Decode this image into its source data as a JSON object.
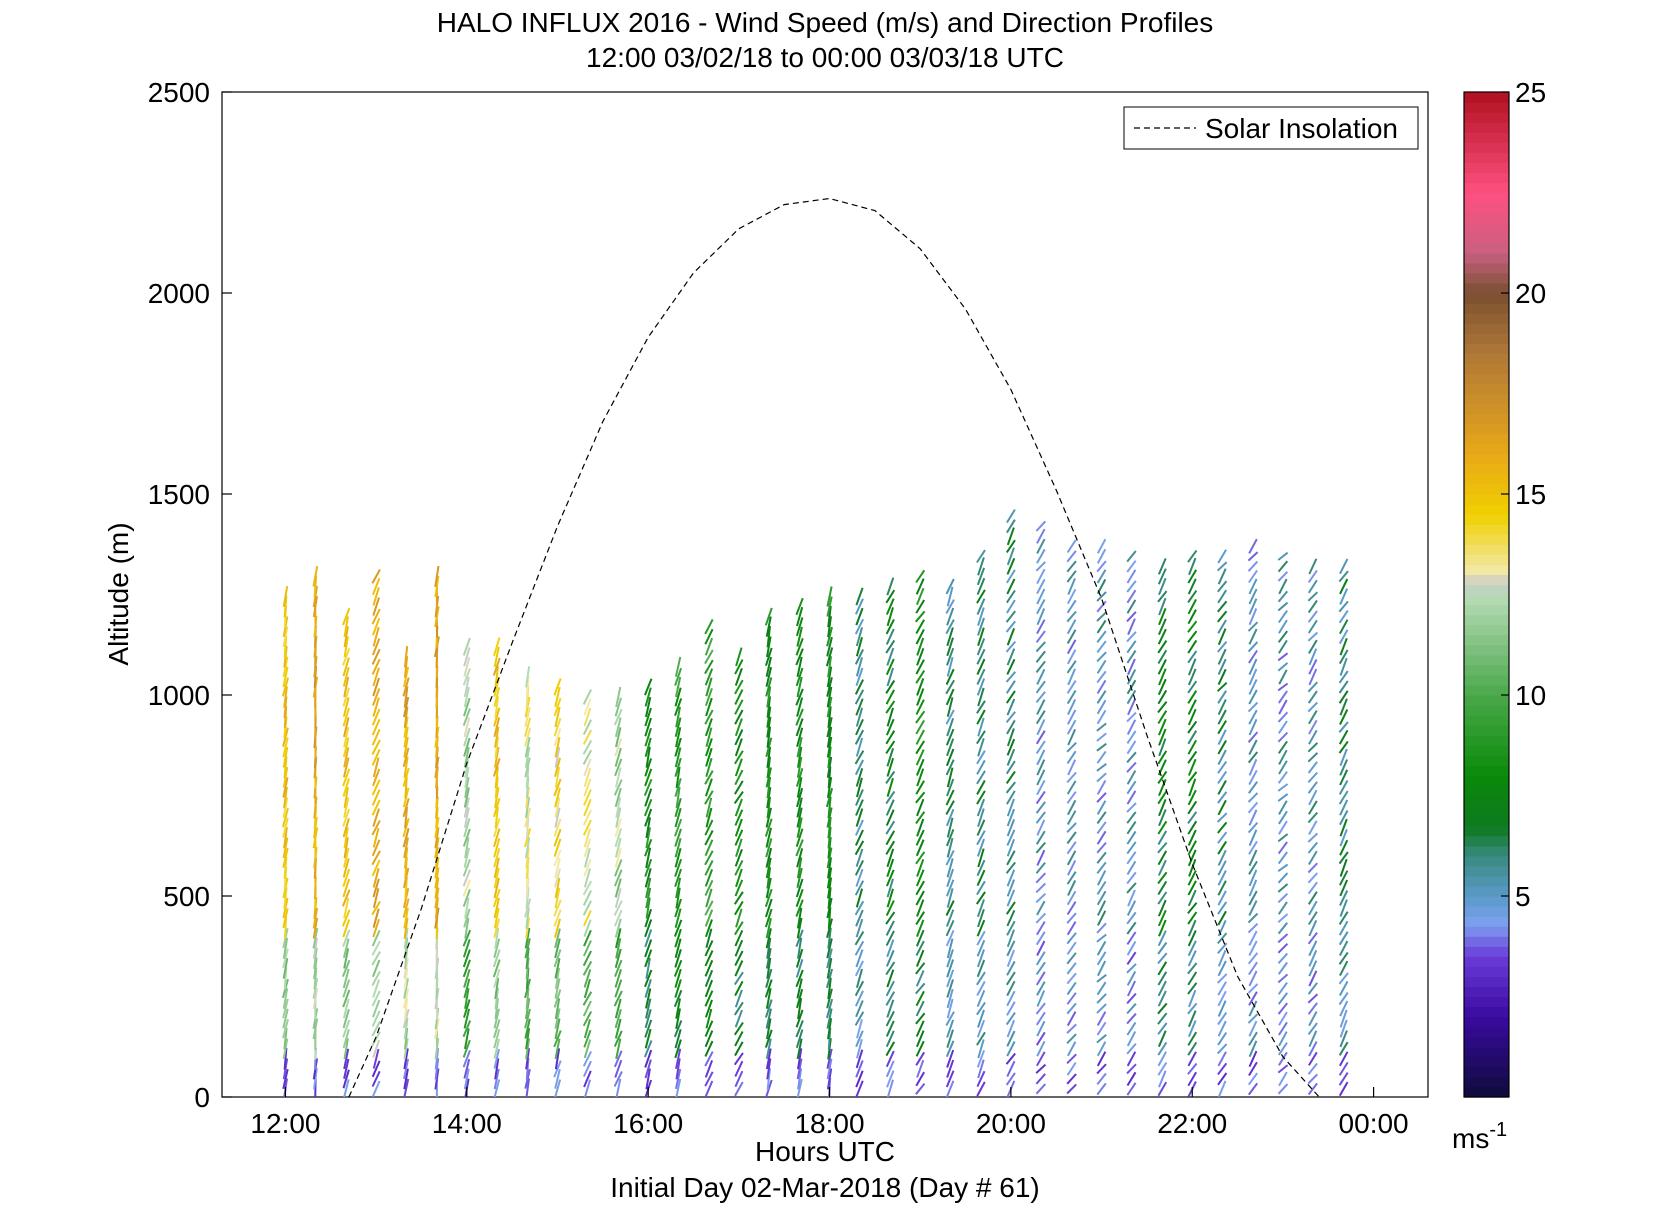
{
  "chart_data": {
    "type": "wind-barb-profile",
    "title": "HALO INFLUX 2016 - Wind Speed (m/s) and Direction Profiles",
    "subtitle": "12:00 03/02/18 to 00:00 03/03/18  UTC",
    "xlabel": "Hours UTC",
    "xlabel2": "Initial Day 02-Mar-2018 (Day # 61)",
    "ylabel": "Altitude (m)",
    "xlim": [
      11.3,
      24.6
    ],
    "ylim": [
      0,
      2500
    ],
    "x_ticks": [
      12,
      14,
      16,
      18,
      20,
      22,
      24
    ],
    "x_tick_labels": [
      "12:00",
      "14:00",
      "16:00",
      "18:00",
      "20:00",
      "22:00",
      "00:00"
    ],
    "y_ticks": [
      0,
      500,
      1000,
      1500,
      2000,
      2500
    ],
    "y_tick_labels": [
      "0",
      "500",
      "1000",
      "1500",
      "2000",
      "2500"
    ],
    "legend": {
      "position": "top-right",
      "entries": [
        {
          "label": "Solar Insolation",
          "style": "dashed",
          "color": "#000000"
        }
      ]
    },
    "colorbar": {
      "range": [
        0,
        25
      ],
      "ticks": [
        5,
        10,
        15,
        20,
        25
      ],
      "tick_labels": [
        "5",
        "10",
        "15",
        "20",
        "25"
      ],
      "unit_label": "ms",
      "unit_exponent": "-1",
      "stops": [
        {
          "v": 0.0,
          "color": "#0d0b3a"
        },
        {
          "v": 2.0,
          "color": "#3a0aa0"
        },
        {
          "v": 3.5,
          "color": "#6a3bd8"
        },
        {
          "v": 4.3,
          "color": "#7ea0f0"
        },
        {
          "v": 5.0,
          "color": "#5a9ac8"
        },
        {
          "v": 6.0,
          "color": "#3a8a80"
        },
        {
          "v": 6.7,
          "color": "#0e7a20"
        },
        {
          "v": 8.0,
          "color": "#0a8a0a"
        },
        {
          "v": 10.0,
          "color": "#4aa84a"
        },
        {
          "v": 12.5,
          "color": "#b8dcb8"
        },
        {
          "v": 12.8,
          "color": "#c8c8c8"
        },
        {
          "v": 13.0,
          "color": "#f2eab0"
        },
        {
          "v": 14.5,
          "color": "#f0d000"
        },
        {
          "v": 16.0,
          "color": "#e8a818"
        },
        {
          "v": 18.5,
          "color": "#b07838"
        },
        {
          "v": 20.0,
          "color": "#7a5030"
        },
        {
          "v": 21.0,
          "color": "#c86080"
        },
        {
          "v": 22.5,
          "color": "#ff5080"
        },
        {
          "v": 25.0,
          "color": "#b01020"
        }
      ]
    },
    "solar_insolation": {
      "x": [
        12.7,
        13.0,
        13.5,
        14.0,
        14.5,
        15.0,
        15.5,
        16.0,
        16.5,
        17.0,
        17.5,
        18.0,
        18.5,
        19.0,
        19.5,
        20.0,
        20.5,
        21.0,
        21.5,
        22.0,
        22.5,
        23.0,
        23.4
      ],
      "y": [
        0,
        150,
        470,
        830,
        1130,
        1420,
        1680,
        1890,
        2050,
        2160,
        2220,
        2235,
        2205,
        2110,
        1960,
        1760,
        1510,
        1240,
        900,
        580,
        300,
        100,
        0
      ]
    },
    "profiles": {
      "x": [
        12.0,
        12.33,
        12.67,
        13.0,
        13.33,
        13.67,
        14.0,
        14.33,
        14.67,
        15.0,
        15.33,
        15.67,
        16.0,
        16.33,
        16.67,
        17.0,
        17.33,
        17.67,
        18.0,
        18.33,
        18.67,
        19.0,
        19.33,
        19.67,
        20.0,
        20.33,
        20.67,
        21.0,
        21.33,
        21.67,
        22.0,
        22.33,
        22.67,
        23.0,
        23.33,
        23.67
      ],
      "top": [
        1250,
        1300,
        1200,
        1300,
        1100,
        1300,
        1130,
        1120,
        1060,
        1020,
        1000,
        1000,
        1040,
        1070,
        1190,
        1110,
        1210,
        1220,
        1250,
        1250,
        1270,
        1300,
        1290,
        1350,
        1450,
        1420,
        1380,
        1380,
        1360,
        1340,
        1350,
        1360,
        1370,
        1350,
        1340,
        1330
      ],
      "mean_speed_mps": [
        15,
        16,
        15,
        16,
        16,
        16,
        12,
        15,
        13,
        14,
        13,
        12,
        8,
        9,
        9,
        8,
        8,
        8,
        8,
        6,
        7,
        8,
        6,
        6,
        6,
        5,
        5,
        5,
        5,
        7,
        7,
        6,
        5,
        5,
        5,
        6
      ],
      "direction_deg": [
        340,
        350,
        330,
        320,
        340,
        350,
        330,
        335,
        340,
        330,
        320,
        325,
        330,
        330,
        320,
        315,
        335,
        330,
        340,
        320,
        315,
        310,
        320,
        315,
        310,
        305,
        305,
        300,
        305,
        310,
        310,
        305,
        305,
        300,
        305,
        310
      ]
    }
  }
}
